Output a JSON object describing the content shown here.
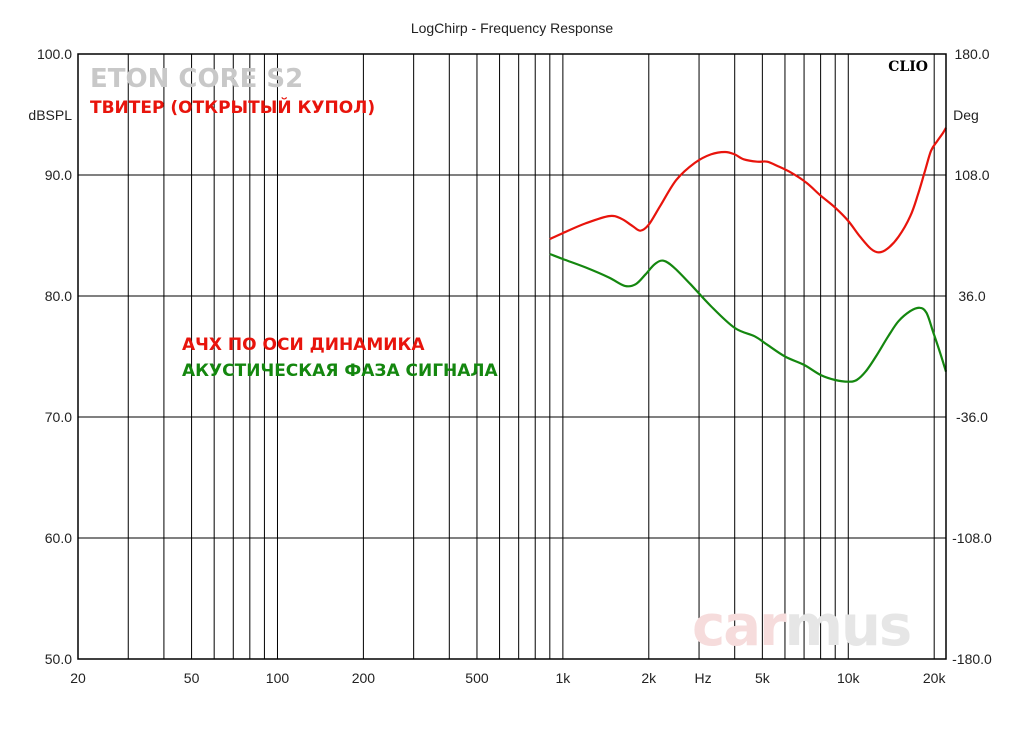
{
  "chart_data": {
    "type": "line",
    "title": "LogChirp - Frequency Response",
    "x_scale": "log",
    "xlim": [
      20,
      22000
    ],
    "x_tick_labels": [
      {
        "v": 20,
        "t": "20"
      },
      {
        "v": 50,
        "t": "50"
      },
      {
        "v": 100,
        "t": "100"
      },
      {
        "v": 200,
        "t": "200"
      },
      {
        "v": 500,
        "t": "500"
      },
      {
        "v": 1000,
        "t": "1k"
      },
      {
        "v": 2000,
        "t": "2k"
      },
      {
        "v": 3100,
        "t": "Hz"
      },
      {
        "v": 5000,
        "t": "5k"
      },
      {
        "v": 10000,
        "t": "10k"
      },
      {
        "v": 20000,
        "t": "20k"
      }
    ],
    "y_left": {
      "label": "dBSPL",
      "lim": [
        50,
        100
      ],
      "ticks": [
        {
          "v": 100,
          "t": "100.0"
        },
        {
          "v": 90,
          "t": "90.0"
        },
        {
          "v": 80,
          "t": "80.0"
        },
        {
          "v": 70,
          "t": "70.0"
        },
        {
          "v": 60,
          "t": "60.0"
        },
        {
          "v": 50,
          "t": "50.0"
        }
      ]
    },
    "y_right": {
      "label": "Deg",
      "lim": [
        -180,
        180
      ],
      "ticks": [
        {
          "v": 180,
          "t": "180.0"
        },
        {
          "v": 108,
          "t": "108.0"
        },
        {
          "v": 36,
          "t": "36.0"
        },
        {
          "v": -36,
          "t": "-36.0"
        },
        {
          "v": -108,
          "t": "-108.0"
        },
        {
          "v": -180,
          "t": "-180.0"
        }
      ]
    },
    "grid": true,
    "series": [
      {
        "name": "АЧХ ПО ОСИ ДИНАМИКА",
        "axis": "left",
        "color": "#e8140c",
        "points": [
          [
            900,
            84.7
          ],
          [
            1000,
            85.2
          ],
          [
            1200,
            86.0
          ],
          [
            1450,
            86.6
          ],
          [
            1600,
            86.4
          ],
          [
            1750,
            85.8
          ],
          [
            1870,
            85.4
          ],
          [
            2000,
            85.9
          ],
          [
            2200,
            87.5
          ],
          [
            2500,
            89.6
          ],
          [
            2900,
            91.0
          ],
          [
            3300,
            91.7
          ],
          [
            3700,
            91.9
          ],
          [
            4000,
            91.7
          ],
          [
            4300,
            91.3
          ],
          [
            4800,
            91.1
          ],
          [
            5200,
            91.1
          ],
          [
            5700,
            90.7
          ],
          [
            6300,
            90.2
          ],
          [
            7100,
            89.4
          ],
          [
            8000,
            88.3
          ],
          [
            9000,
            87.3
          ],
          [
            10000,
            86.2
          ],
          [
            11000,
            84.9
          ],
          [
            12000,
            83.9
          ],
          [
            12800,
            83.6
          ],
          [
            13700,
            83.9
          ],
          [
            15000,
            84.9
          ],
          [
            16500,
            86.6
          ],
          [
            17500,
            88.3
          ],
          [
            18500,
            90.2
          ],
          [
            19500,
            92.0
          ],
          [
            20500,
            92.8
          ],
          [
            21500,
            93.5
          ],
          [
            22000,
            93.9
          ]
        ]
      },
      {
        "name": "АКУСТИЧЕСКАЯ ФАЗА СИГНАЛА",
        "axis": "right",
        "color": "#14870f",
        "points": [
          [
            900,
            61
          ],
          [
            1000,
            58
          ],
          [
            1200,
            53
          ],
          [
            1450,
            47
          ],
          [
            1650,
            42
          ],
          [
            1800,
            43
          ],
          [
            1950,
            49
          ],
          [
            2100,
            55
          ],
          [
            2250,
            57
          ],
          [
            2450,
            53
          ],
          [
            2800,
            43
          ],
          [
            3300,
            30
          ],
          [
            4000,
            17
          ],
          [
            4700,
            12
          ],
          [
            5200,
            7
          ],
          [
            6000,
            0
          ],
          [
            7000,
            -5
          ],
          [
            8000,
            -11
          ],
          [
            9000,
            -14
          ],
          [
            10000,
            -15
          ],
          [
            10700,
            -14
          ],
          [
            11500,
            -9
          ],
          [
            12500,
            0
          ],
          [
            13800,
            12
          ],
          [
            15000,
            21
          ],
          [
            16500,
            27
          ],
          [
            17800,
            29
          ],
          [
            18800,
            26
          ],
          [
            19800,
            15
          ],
          [
            21000,
            2
          ],
          [
            22000,
            -9
          ]
        ]
      }
    ]
  },
  "brand": {
    "line1": "ETON CORE S2",
    "line2": "ТВИТЕР (ОТКРЫТЫЙ КУПОЛ)"
  },
  "legend": {
    "red_label": "АЧХ ПО ОСИ ДИНАМИКА",
    "green_label": "АКУСТИЧЕСКАЯ ФАЗА СИГНАЛА",
    "red_color": "#e8140c",
    "green_color": "#14870f"
  },
  "clio_label": "CLIO",
  "watermark": {
    "part1": "car",
    "part2": "mus"
  }
}
